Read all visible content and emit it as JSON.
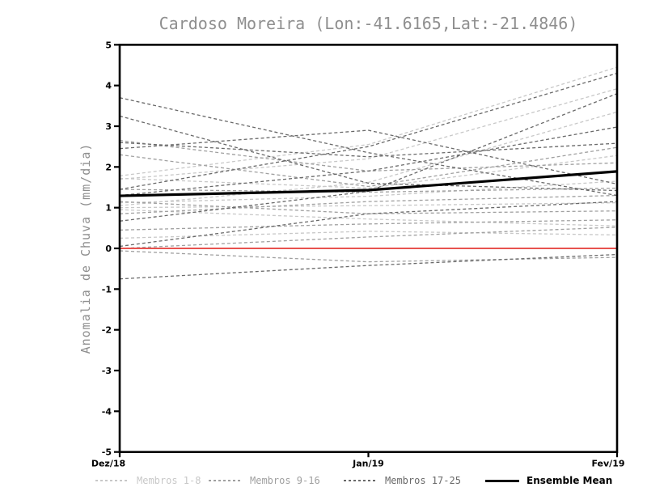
{
  "chart_data": {
    "type": "line",
    "title": "Cardoso Moreira (Lon:-41.6165,Lat:-21.4846)",
    "ylabel": "Anomalia de Chuva (mm/dia)",
    "xlabel": "",
    "x_categories": [
      "Dez/18",
      "Jan/19",
      "Fev/19"
    ],
    "ylim": [
      -5,
      5
    ],
    "yticks": [
      -5,
      -4,
      -3,
      -2,
      -1,
      0,
      1,
      2,
      3,
      4,
      5
    ],
    "grid": false,
    "legend_position": "bottom",
    "zero_line": {
      "value": 0,
      "color": "#e8534f"
    },
    "groups": [
      {
        "name": "Membros 1-8",
        "color": "#c8c8c8",
        "style": "dashed"
      },
      {
        "name": "Membros 9-16",
        "color": "#a0a0a0",
        "style": "dashed"
      },
      {
        "name": "Membros 17-25",
        "color": "#696969",
        "style": "dashed"
      }
    ],
    "series": [
      {
        "id": 1,
        "group": 0,
        "values": [
          1.78,
          2.55,
          4.45
        ]
      },
      {
        "id": 2,
        "group": 0,
        "values": [
          1.7,
          2.2,
          3.92
        ]
      },
      {
        "id": 3,
        "group": 0,
        "values": [
          1.05,
          1.62,
          3.35
        ]
      },
      {
        "id": 4,
        "group": 0,
        "values": [
          1.72,
          1.48,
          2.28
        ]
      },
      {
        "id": 5,
        "group": 0,
        "values": [
          1.12,
          1.28,
          1.65
        ]
      },
      {
        "id": 6,
        "group": 0,
        "values": [
          1.0,
          1.05,
          1.12
        ]
      },
      {
        "id": 7,
        "group": 0,
        "values": [
          0.95,
          0.72,
          0.55
        ]
      },
      {
        "id": 8,
        "group": 0,
        "values": [
          0.25,
          0.42,
          0.33
        ]
      },
      {
        "id": 9,
        "group": 1,
        "values": [
          2.65,
          1.9,
          2.1
        ]
      },
      {
        "id": 10,
        "group": 1,
        "values": [
          1.45,
          1.38,
          1.48
        ]
      },
      {
        "id": 11,
        "group": 1,
        "values": [
          0.85,
          1.15,
          1.3
        ]
      },
      {
        "id": 12,
        "group": 1,
        "values": [
          1.15,
          0.85,
          0.92
        ]
      },
      {
        "id": 13,
        "group": 1,
        "values": [
          0.45,
          0.6,
          0.7
        ]
      },
      {
        "id": 14,
        "group": 1,
        "values": [
          -0.06,
          -0.33,
          -0.22
        ]
      },
      {
        "id": 15,
        "group": 1,
        "values": [
          0.0,
          0.28,
          0.52
        ]
      },
      {
        "id": 16,
        "group": 1,
        "values": [
          2.3,
          1.52,
          2.48
        ]
      },
      {
        "id": 17,
        "group": 2,
        "values": [
          3.7,
          2.35,
          1.3
        ]
      },
      {
        "id": 18,
        "group": 2,
        "values": [
          3.25,
          1.6,
          1.42
        ]
      },
      {
        "id": 19,
        "group": 2,
        "values": [
          2.45,
          2.9,
          1.58
        ]
      },
      {
        "id": 20,
        "group": 2,
        "values": [
          1.3,
          1.9,
          2.98
        ]
      },
      {
        "id": 21,
        "group": 2,
        "values": [
          1.45,
          2.5,
          4.3
        ]
      },
      {
        "id": 22,
        "group": 2,
        "values": [
          0.67,
          1.4,
          3.8
        ]
      },
      {
        "id": 23,
        "group": 2,
        "values": [
          -0.75,
          -0.42,
          -0.15
        ]
      },
      {
        "id": 24,
        "group": 2,
        "values": [
          0.05,
          0.85,
          1.15
        ]
      },
      {
        "id": 25,
        "group": 2,
        "values": [
          2.6,
          2.25,
          2.58
        ]
      }
    ],
    "ensemble_mean": {
      "name": "Ensemble Mean",
      "color": "#000000",
      "style": "solid",
      "values": [
        1.29,
        1.43,
        1.89
      ]
    }
  }
}
